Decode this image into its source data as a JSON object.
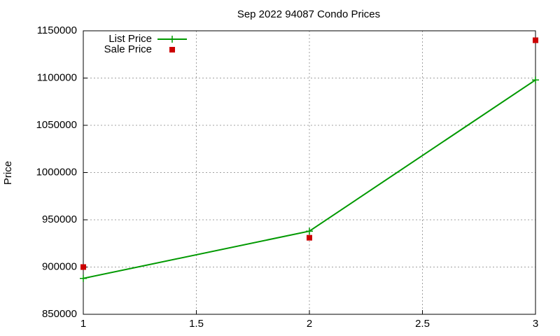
{
  "chart_data": {
    "type": "line",
    "title": "Sep 2022 94087 Condo Prices",
    "y_label": "Price",
    "x": [
      1,
      2,
      3
    ],
    "series": [
      {
        "name": "List Price",
        "color": "#009900",
        "marker": "plus",
        "line": true,
        "values": [
          888000,
          938000,
          1098000
        ]
      },
      {
        "name": "Sale Price",
        "color": "#cc0000",
        "marker": "square",
        "line": false,
        "values": [
          900000,
          931000,
          1140000
        ]
      }
    ],
    "xlim": [
      1,
      3
    ],
    "xticks": [
      1,
      1.5,
      2,
      2.5,
      3
    ],
    "ylim": [
      850000,
      1150000
    ],
    "yticks": [
      850000,
      900000,
      950000,
      1000000,
      1050000,
      1100000,
      1150000
    ],
    "grid": true,
    "legend": "top-left"
  }
}
